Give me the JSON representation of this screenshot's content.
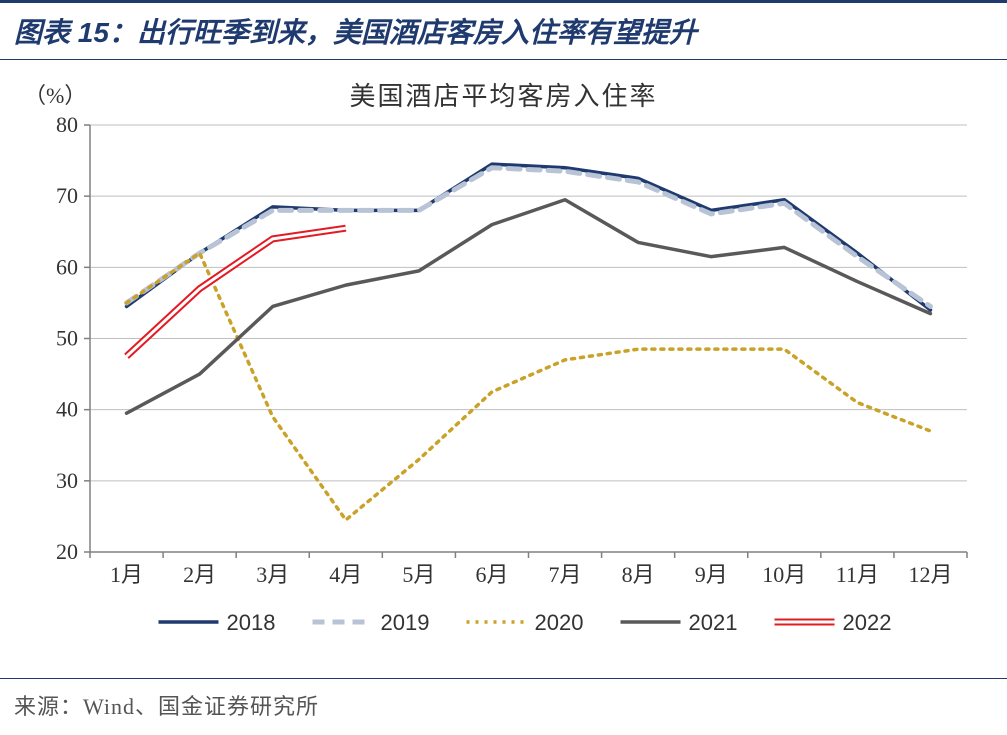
{
  "header": {
    "prefix": "图表 15：",
    "title": "出行旺季到来，美国酒店客房入住率有望提升"
  },
  "chart": {
    "type": "line",
    "title": "美国酒店平均客房入住率",
    "y_unit": "（%）",
    "categories": [
      "1月",
      "2月",
      "3月",
      "4月",
      "5月",
      "6月",
      "7月",
      "8月",
      "9月",
      "10月",
      "11月",
      "12月"
    ],
    "ylim": [
      20,
      80
    ],
    "ytick_step": 10,
    "background_color": "#ffffff",
    "grid_color": "#bfbfbf",
    "axis_color": "#808080",
    "axis_font_size": 22,
    "title_font_size": 26,
    "series": [
      {
        "name": "2018",
        "values": [
          54.5,
          62.0,
          68.5,
          68.0,
          68.0,
          74.5,
          74.0,
          72.5,
          68.0,
          69.5,
          62.0,
          54.0
        ],
        "color": "#1f3a6e",
        "line_width": 3.5,
        "dash": null,
        "double": false
      },
      {
        "name": "2019",
        "values": [
          55.0,
          62.0,
          68.0,
          68.0,
          68.0,
          74.0,
          73.5,
          72.0,
          67.5,
          69.0,
          61.5,
          54.5
        ],
        "color": "#b9c3d6",
        "line_width": 5,
        "dash": "12,8",
        "double": false
      },
      {
        "name": "2020",
        "values": [
          55.0,
          62.0,
          39.0,
          24.5,
          33.0,
          42.5,
          47.0,
          48.5,
          48.5,
          48.5,
          41.0,
          37.0
        ],
        "color": "#c9a227",
        "line_width": 3.5,
        "dash": "3,6",
        "double": false
      },
      {
        "name": "2021",
        "values": [
          39.5,
          45.0,
          54.5,
          57.5,
          59.5,
          66.0,
          69.5,
          63.5,
          61.5,
          62.8,
          58.0,
          53.5
        ],
        "color": "#595959",
        "line_width": 3.5,
        "dash": null,
        "double": false
      },
      {
        "name": "2022",
        "values": [
          47.5,
          57.0,
          64.0,
          65.5
        ],
        "color": "#e31b23",
        "line_width": 2,
        "dash": null,
        "double": true,
        "double_gap": 3
      }
    ],
    "legend": {
      "position": "bottom",
      "line_length": 60,
      "font_size": 22
    }
  },
  "footer": {
    "source": "来源：Wind、国金证券研究所"
  }
}
